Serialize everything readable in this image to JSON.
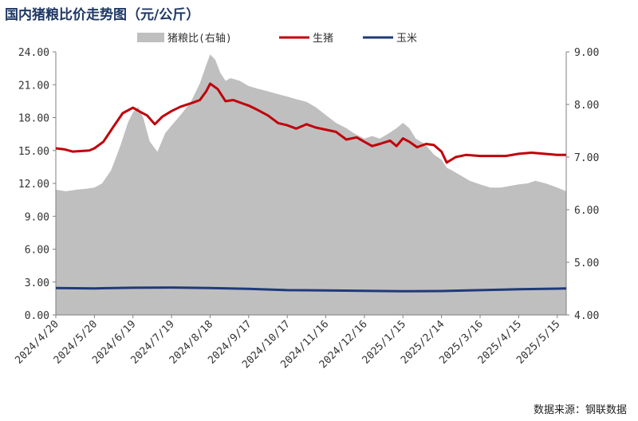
{
  "title": "国内猪粮比价走势图（元/公斤）",
  "source": "数据来源：钢联数据",
  "chart_data": {
    "type": "area+line",
    "title": "国内猪粮比价走势图（元/公斤）",
    "legend": [
      {
        "name": "猪粮比(右轴)",
        "color": "#bfbfbf",
        "kind": "area"
      },
      {
        "name": "生猪",
        "color": "#c0000b",
        "kind": "line"
      },
      {
        "name": "玉米",
        "color": "#1f3a7a",
        "kind": "line"
      }
    ],
    "legend_position": "top-center",
    "x_labels": [
      "2024/4/20",
      "2024/5/20",
      "2024/6/19",
      "2024/7/19",
      "2024/8/18",
      "2024/9/17",
      "2024/10/17",
      "2024/11/16",
      "2024/12/16",
      "2025/1/15",
      "2025/2/14",
      "2025/3/16",
      "2025/4/15",
      "2025/5/15"
    ],
    "x_range": [
      "2024/4/20",
      "2025/5/22"
    ],
    "left_axis": {
      "min": 0,
      "max": 24,
      "ticks": [
        "0.00",
        "3.00",
        "6.00",
        "9.00",
        "12.00",
        "15.00",
        "18.00",
        "21.00",
        "24.00"
      ]
    },
    "right_axis": {
      "min": 4,
      "max": 9,
      "ticks": [
        "4.00",
        "5.00",
        "6.00",
        "7.00",
        "8.00",
        "9.00"
      ]
    },
    "series": [
      {
        "name": "猪粮比(右轴)",
        "axis": "right",
        "points": [
          [
            "2024/4/20",
            6.38
          ],
          [
            "2024/4/28",
            6.35
          ],
          [
            "2024/5/6",
            6.38
          ],
          [
            "2024/5/14",
            6.4
          ],
          [
            "2024/5/20",
            6.42
          ],
          [
            "2024/5/26",
            6.5
          ],
          [
            "2024/6/2",
            6.75
          ],
          [
            "2024/6/9",
            7.2
          ],
          [
            "2024/6/15",
            7.65
          ],
          [
            "2024/6/19",
            7.85
          ],
          [
            "2024/6/23",
            7.95
          ],
          [
            "2024/6/27",
            7.75
          ],
          [
            "2024/7/2",
            7.3
          ],
          [
            "2024/7/8",
            7.1
          ],
          [
            "2024/7/14",
            7.45
          ],
          [
            "2024/7/19",
            7.6
          ],
          [
            "2024/7/26",
            7.8
          ],
          [
            "2024/8/3",
            8.05
          ],
          [
            "2024/8/10",
            8.4
          ],
          [
            "2024/8/15",
            8.75
          ],
          [
            "2024/8/18",
            8.95
          ],
          [
            "2024/8/22",
            8.85
          ],
          [
            "2024/8/26",
            8.6
          ],
          [
            "2024/8/30",
            8.45
          ],
          [
            "2024/9/3",
            8.5
          ],
          [
            "2024/9/10",
            8.45
          ],
          [
            "2024/9/17",
            8.35
          ],
          [
            "2024/9/24",
            8.3
          ],
          [
            "2024/10/2",
            8.25
          ],
          [
            "2024/10/9",
            8.2
          ],
          [
            "2024/10/17",
            8.15
          ],
          [
            "2024/10/24",
            8.1
          ],
          [
            "2024/11/1",
            8.05
          ],
          [
            "2024/11/8",
            7.95
          ],
          [
            "2024/11/16",
            7.8
          ],
          [
            "2024/11/24",
            7.65
          ],
          [
            "2024/12/2",
            7.55
          ],
          [
            "2024/12/8",
            7.45
          ],
          [
            "2024/12/16",
            7.35
          ],
          [
            "2024/12/22",
            7.4
          ],
          [
            "2024/12/28",
            7.35
          ],
          [
            "2025/1/4",
            7.45
          ],
          [
            "2025/1/10",
            7.55
          ],
          [
            "2025/1/15",
            7.65
          ],
          [
            "2025/1/20",
            7.55
          ],
          [
            "2025/1/25",
            7.35
          ],
          [
            "2025/2/1",
            7.25
          ],
          [
            "2025/2/8",
            7.05
          ],
          [
            "2025/2/14",
            6.95
          ],
          [
            "2025/2/18",
            6.8
          ],
          [
            "2025/2/22",
            6.75
          ],
          [
            "2025/3/1",
            6.65
          ],
          [
            "2025/3/8",
            6.55
          ],
          [
            "2025/3/16",
            6.48
          ],
          [
            "2025/3/24",
            6.42
          ],
          [
            "2025/4/1",
            6.42
          ],
          [
            "2025/4/8",
            6.45
          ],
          [
            "2025/4/15",
            6.48
          ],
          [
            "2025/4/22",
            6.5
          ],
          [
            "2025/4/28",
            6.55
          ],
          [
            "2025/5/6",
            6.5
          ],
          [
            "2025/5/15",
            6.42
          ],
          [
            "2025/5/22",
            6.35
          ]
        ]
      },
      {
        "name": "生猪",
        "axis": "left",
        "points": [
          [
            "2024/4/20",
            15.2
          ],
          [
            "2024/4/27",
            15.1
          ],
          [
            "2024/5/3",
            14.9
          ],
          [
            "2024/5/10",
            14.95
          ],
          [
            "2024/5/16",
            15.0
          ],
          [
            "2024/5/20",
            15.2
          ],
          [
            "2024/5/27",
            15.8
          ],
          [
            "2024/6/4",
            17.2
          ],
          [
            "2024/6/11",
            18.4
          ],
          [
            "2024/6/19",
            18.9
          ],
          [
            "2024/6/25",
            18.5
          ],
          [
            "2024/6/30",
            18.2
          ],
          [
            "2024/7/6",
            17.4
          ],
          [
            "2024/7/12",
            18.1
          ],
          [
            "2024/7/19",
            18.6
          ],
          [
            "2024/7/26",
            19.0
          ],
          [
            "2024/8/3",
            19.3
          ],
          [
            "2024/8/10",
            19.6
          ],
          [
            "2024/8/15",
            20.4
          ],
          [
            "2024/8/18",
            21.1
          ],
          [
            "2024/8/24",
            20.6
          ],
          [
            "2024/8/30",
            19.5
          ],
          [
            "2024/9/5",
            19.6
          ],
          [
            "2024/9/12",
            19.3
          ],
          [
            "2024/9/17",
            19.1
          ],
          [
            "2024/9/24",
            18.7
          ],
          [
            "2024/10/2",
            18.2
          ],
          [
            "2024/10/10",
            17.5
          ],
          [
            "2024/10/17",
            17.3
          ],
          [
            "2024/10/24",
            17.0
          ],
          [
            "2024/11/1",
            17.4
          ],
          [
            "2024/11/8",
            17.1
          ],
          [
            "2024/11/16",
            16.9
          ],
          [
            "2024/11/24",
            16.7
          ],
          [
            "2024/12/2",
            16.0
          ],
          [
            "2024/12/10",
            16.2
          ],
          [
            "2024/12/16",
            15.8
          ],
          [
            "2024/12/22",
            15.4
          ],
          [
            "2024/12/28",
            15.6
          ],
          [
            "2025/1/5",
            15.9
          ],
          [
            "2025/1/10",
            15.4
          ],
          [
            "2025/1/15",
            16.1
          ],
          [
            "2025/1/20",
            15.8
          ],
          [
            "2025/1/26",
            15.3
          ],
          [
            "2025/2/2",
            15.6
          ],
          [
            "2025/2/8",
            15.5
          ],
          [
            "2025/2/14",
            14.9
          ],
          [
            "2025/2/18",
            13.9
          ],
          [
            "2025/2/25",
            14.4
          ],
          [
            "2025/3/5",
            14.6
          ],
          [
            "2025/3/16",
            14.5
          ],
          [
            "2025/3/26",
            14.5
          ],
          [
            "2025/4/5",
            14.5
          ],
          [
            "2025/4/15",
            14.7
          ],
          [
            "2025/4/25",
            14.8
          ],
          [
            "2025/5/5",
            14.7
          ],
          [
            "2025/5/15",
            14.6
          ],
          [
            "2025/5/22",
            14.6
          ]
        ]
      },
      {
        "name": "玉米",
        "axis": "left",
        "points": [
          [
            "2024/4/20",
            2.45
          ],
          [
            "2024/5/20",
            2.42
          ],
          [
            "2024/6/19",
            2.48
          ],
          [
            "2024/7/19",
            2.5
          ],
          [
            "2024/8/18",
            2.45
          ],
          [
            "2024/9/17",
            2.38
          ],
          [
            "2024/10/17",
            2.26
          ],
          [
            "2024/11/16",
            2.24
          ],
          [
            "2024/12/16",
            2.2
          ],
          [
            "2025/1/15",
            2.17
          ],
          [
            "2025/2/14",
            2.18
          ],
          [
            "2025/3/16",
            2.26
          ],
          [
            "2025/4/15",
            2.34
          ],
          [
            "2025/5/15",
            2.4
          ],
          [
            "2025/5/22",
            2.42
          ]
        ]
      }
    ]
  }
}
